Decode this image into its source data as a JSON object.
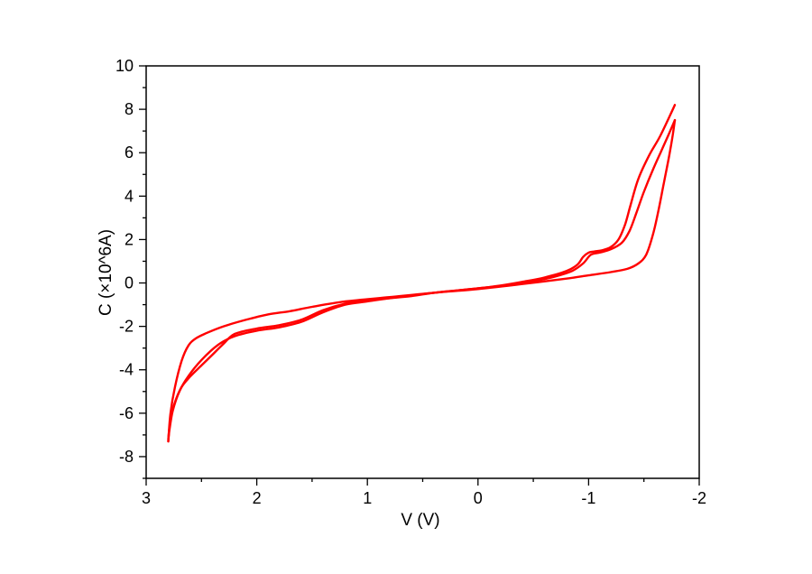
{
  "chart_data": {
    "type": "line",
    "title": "",
    "xlabel": "V (V)",
    "ylabel": "C (×10^6A)",
    "xlim": [
      3,
      -2
    ],
    "ylim": [
      -9,
      10
    ],
    "x_reversed": true,
    "x_ticks": [
      3,
      2,
      1,
      0,
      -1,
      -2
    ],
    "x_tick_labels": [
      "3",
      "2",
      "1",
      "0",
      "-1",
      "-2"
    ],
    "y_ticks": [
      -8,
      -6,
      -4,
      -2,
      0,
      2,
      4,
      6,
      8,
      10
    ],
    "y_tick_labels": [
      "-8",
      "-6",
      "-4",
      "-2",
      "0",
      "2",
      "4",
      "6",
      "8",
      "10"
    ],
    "grid": false,
    "legend": "none",
    "color": "#ff0000",
    "series": [
      {
        "points": [
          [
            2.8,
            -7.2
          ],
          [
            2.78,
            -6.3
          ],
          [
            2.74,
            -5.5
          ],
          [
            2.68,
            -4.8
          ],
          [
            2.6,
            -4.3
          ],
          [
            2.5,
            -3.8
          ],
          [
            2.4,
            -3.3
          ],
          [
            2.3,
            -2.8
          ],
          [
            2.2,
            -2.35
          ],
          [
            2.0,
            -2.1
          ],
          [
            1.8,
            -1.95
          ],
          [
            1.6,
            -1.7
          ],
          [
            1.4,
            -1.25
          ],
          [
            1.2,
            -0.95
          ],
          [
            1.0,
            -0.8
          ],
          [
            0.8,
            -0.7
          ],
          [
            0.6,
            -0.6
          ],
          [
            0.4,
            -0.45
          ],
          [
            0.2,
            -0.35
          ],
          [
            0.0,
            -0.25
          ],
          [
            -0.2,
            -0.12
          ],
          [
            -0.4,
            0.05
          ],
          [
            -0.6,
            0.25
          ],
          [
            -0.8,
            0.55
          ],
          [
            -0.9,
            0.85
          ],
          [
            -0.95,
            1.2
          ],
          [
            -1.0,
            1.4
          ],
          [
            -1.05,
            1.45
          ],
          [
            -1.12,
            1.5
          ],
          [
            -1.2,
            1.65
          ],
          [
            -1.27,
            2.0
          ],
          [
            -1.33,
            2.7
          ],
          [
            -1.38,
            3.6
          ],
          [
            -1.45,
            4.8
          ],
          [
            -1.55,
            5.9
          ],
          [
            -1.65,
            6.8
          ],
          [
            -1.78,
            8.2
          ]
        ]
      },
      {
        "points": [
          [
            -1.78,
            7.5
          ],
          [
            -1.72,
            6.8
          ],
          [
            -1.65,
            6.0
          ],
          [
            -1.58,
            5.2
          ],
          [
            -1.5,
            4.2
          ],
          [
            -1.43,
            3.2
          ],
          [
            -1.37,
            2.4
          ],
          [
            -1.3,
            1.85
          ],
          [
            -1.2,
            1.55
          ],
          [
            -1.1,
            1.4
          ],
          [
            -1.02,
            1.3
          ],
          [
            -0.95,
            0.9
          ],
          [
            -0.85,
            0.55
          ],
          [
            -0.7,
            0.3
          ],
          [
            -0.5,
            0.08
          ],
          [
            -0.3,
            -0.08
          ],
          [
            0.0,
            -0.25
          ],
          [
            0.4,
            -0.45
          ],
          [
            0.8,
            -0.7
          ],
          [
            1.0,
            -0.85
          ],
          [
            1.2,
            -1.0
          ],
          [
            1.4,
            -1.35
          ],
          [
            1.6,
            -1.8
          ],
          [
            1.8,
            -2.05
          ],
          [
            2.0,
            -2.2
          ],
          [
            2.2,
            -2.45
          ],
          [
            2.35,
            -2.85
          ],
          [
            2.5,
            -3.55
          ],
          [
            2.62,
            -4.3
          ],
          [
            2.7,
            -5.0
          ],
          [
            2.76,
            -5.9
          ],
          [
            2.79,
            -6.8
          ],
          [
            2.8,
            -7.3
          ]
        ]
      },
      {
        "points": [
          [
            2.8,
            -7.3
          ],
          [
            2.78,
            -6.0
          ],
          [
            2.74,
            -4.8
          ],
          [
            2.68,
            -3.6
          ],
          [
            2.62,
            -2.9
          ],
          [
            2.55,
            -2.55
          ],
          [
            2.45,
            -2.3
          ],
          [
            2.3,
            -2.0
          ],
          [
            2.1,
            -1.7
          ],
          [
            1.9,
            -1.45
          ],
          [
            1.7,
            -1.3
          ],
          [
            1.5,
            -1.1
          ],
          [
            1.2,
            -0.85
          ],
          [
            0.8,
            -0.65
          ],
          [
            0.4,
            -0.45
          ],
          [
            0.0,
            -0.28
          ],
          [
            -0.4,
            -0.05
          ],
          [
            -0.8,
            0.2
          ],
          [
            -1.0,
            0.35
          ],
          [
            -1.2,
            0.5
          ],
          [
            -1.35,
            0.65
          ],
          [
            -1.45,
            0.9
          ],
          [
            -1.52,
            1.3
          ],
          [
            -1.58,
            2.2
          ],
          [
            -1.63,
            3.3
          ],
          [
            -1.68,
            4.6
          ],
          [
            -1.73,
            5.9
          ],
          [
            -1.76,
            6.8
          ],
          [
            -1.78,
            7.5
          ]
        ]
      }
    ]
  }
}
